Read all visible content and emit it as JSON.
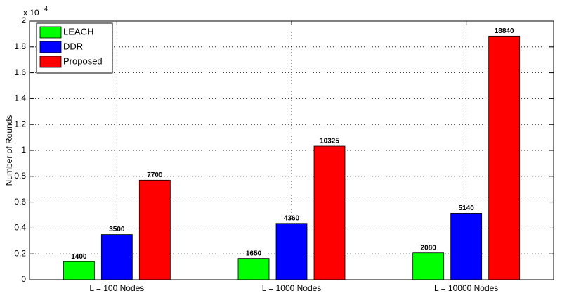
{
  "chart_data": {
    "type": "bar",
    "y_label": "Number of Rounds",
    "y_multiplier": "x 10",
    "y_exponent": "4",
    "categories": [
      "L = 100 Nodes",
      "L = 1000 Nodes",
      "L = 10000 Nodes"
    ],
    "series": [
      {
        "name": "LEACH",
        "color": "#00ff00",
        "values": [
          1400,
          1650,
          2080
        ]
      },
      {
        "name": "DDR",
        "color": "#0000ff",
        "values": [
          3500,
          4360,
          5140
        ]
      },
      {
        "name": "Proposed",
        "color": "#ff0000",
        "values": [
          7700,
          10325,
          18840
        ]
      }
    ],
    "ylim": [
      0,
      20000
    ],
    "yticks": [
      0,
      {
        "value": 2000,
        "label": "0.2"
      },
      {
        "value": 4000,
        "label": "0.4"
      },
      {
        "value": 6000,
        "label": "0.6"
      },
      {
        "value": 8000,
        "label": "0.8"
      },
      {
        "value": 10000,
        "label": "1"
      },
      {
        "value": 12000,
        "label": "1.2"
      },
      {
        "value": 14000,
        "label": "1.4"
      },
      {
        "value": 16000,
        "label": "1.6"
      },
      {
        "value": 18000,
        "label": "1.8"
      },
      {
        "value": 20000,
        "label": "2"
      }
    ],
    "grid": true,
    "legend": "upper left"
  }
}
